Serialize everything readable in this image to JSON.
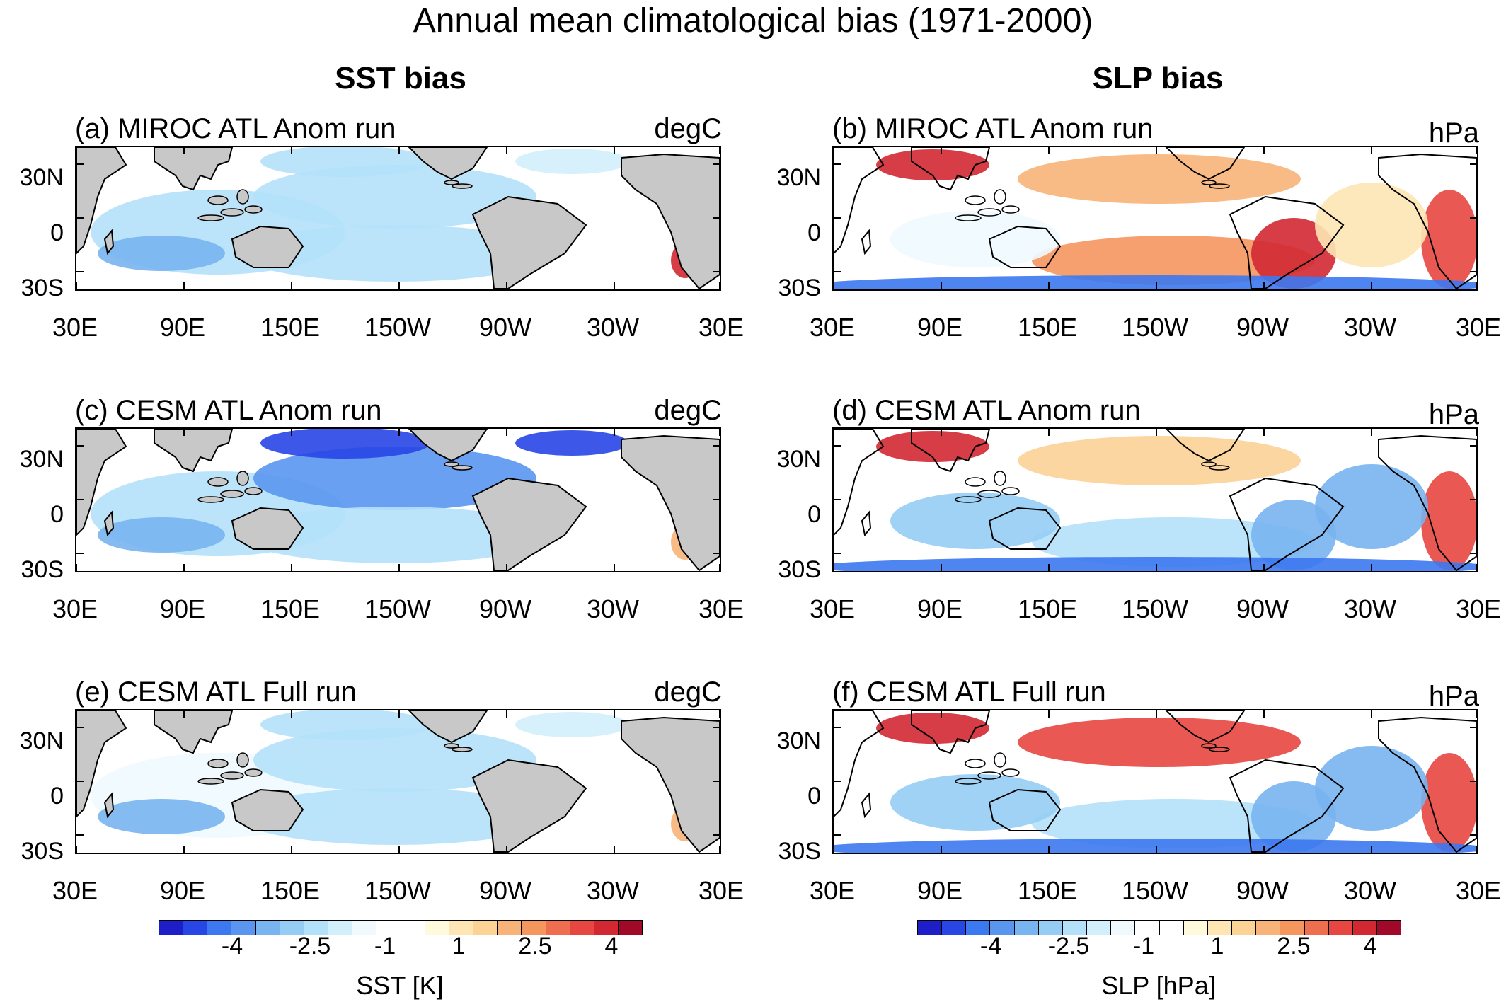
{
  "figure": {
    "title": "Annual mean climatological bias (1971-2000)",
    "column_titles": [
      "SST bias",
      "SLP bias"
    ]
  },
  "panels": [
    {
      "id": "a",
      "title": "(a) MIROC ATL Anom run",
      "unit": "degC",
      "field": "SST"
    },
    {
      "id": "b",
      "title": "(b) MIROC ATL Anom run",
      "unit": "hPa",
      "field": "SLP"
    },
    {
      "id": "c",
      "title": "(c) CESM ATL Anom run",
      "unit": "degC",
      "field": "SST"
    },
    {
      "id": "d",
      "title": "(d) CESM ATL Anom run",
      "unit": "hPa",
      "field": "SLP"
    },
    {
      "id": "e",
      "title": "(e) CESM ATL Full run",
      "unit": "degC",
      "field": "SST"
    },
    {
      "id": "f",
      "title": "(f) CESM ATL Full run",
      "unit": "hPa",
      "field": "SLP"
    }
  ],
  "axes": {
    "lat_ticks": [
      "30N",
      "0",
      "30S"
    ],
    "lon_ticks": [
      "30E",
      "90E",
      "150E",
      "150W",
      "90W",
      "30W",
      "30E"
    ]
  },
  "colorbar": {
    "ticks": [
      "-4",
      "-2.5",
      "-1",
      "1",
      "2.5",
      "4"
    ],
    "labels": [
      "SST [K]",
      "SLP [hPa]"
    ],
    "colors": [
      "#1e1ec8",
      "#2846e6",
      "#3c78f0",
      "#5a96f0",
      "#78b4f0",
      "#96cdf5",
      "#b4e1fa",
      "#d2f0fc",
      "#f0fafe",
      "#ffffff",
      "#ffffff",
      "#fffadc",
      "#fde6b4",
      "#fcd296",
      "#f8b478",
      "#f5965f",
      "#f06e50",
      "#e84641",
      "#d22832",
      "#a00a28"
    ]
  },
  "chart_data": [
    {
      "type": "heatmap",
      "panel": "a",
      "title": "(a) MIROC ATL Anom run",
      "unit": "degC",
      "xlabel": "",
      "ylabel": "",
      "x_ticks": [
        "30E",
        "90E",
        "150E",
        "150W",
        "90W",
        "30W",
        "30E"
      ],
      "y_ticks": [
        "30N",
        "0",
        "30S"
      ],
      "color_range": [
        -5,
        5
      ]
    },
    {
      "type": "heatmap",
      "panel": "b",
      "title": "(b) MIROC ATL Anom run",
      "unit": "hPa",
      "xlabel": "",
      "ylabel": "",
      "x_ticks": [
        "30E",
        "90E",
        "150E",
        "150W",
        "90W",
        "30W",
        "30E"
      ],
      "y_ticks": [
        "30N",
        "0",
        "30S"
      ],
      "color_range": [
        -5,
        5
      ]
    },
    {
      "type": "heatmap",
      "panel": "c",
      "title": "(c) CESM ATL Anom run",
      "unit": "degC",
      "xlabel": "",
      "ylabel": "",
      "x_ticks": [
        "30E",
        "90E",
        "150E",
        "150W",
        "90W",
        "30W",
        "30E"
      ],
      "y_ticks": [
        "30N",
        "0",
        "30S"
      ],
      "color_range": [
        -5,
        5
      ]
    },
    {
      "type": "heatmap",
      "panel": "d",
      "title": "(d) CESM ATL Anom run",
      "unit": "hPa",
      "xlabel": "",
      "ylabel": "",
      "x_ticks": [
        "30E",
        "90E",
        "150E",
        "150W",
        "90W",
        "30W",
        "30E"
      ],
      "y_ticks": [
        "30N",
        "0",
        "30S"
      ],
      "color_range": [
        -5,
        5
      ]
    },
    {
      "type": "heatmap",
      "panel": "e",
      "title": "(e) CESM ATL Full run",
      "unit": "degC",
      "xlabel": "",
      "ylabel": "",
      "x_ticks": [
        "30E",
        "90E",
        "150E",
        "150W",
        "90W",
        "30W",
        "30E"
      ],
      "y_ticks": [
        "30N",
        "0",
        "30S"
      ],
      "color_range": [
        -5,
        5
      ]
    },
    {
      "type": "heatmap",
      "panel": "f",
      "title": "(f) CESM ATL Full run",
      "unit": "hPa",
      "xlabel": "",
      "ylabel": "",
      "x_ticks": [
        "30E",
        "90E",
        "150E",
        "150W",
        "90W",
        "30W",
        "30E"
      ],
      "y_ticks": [
        "30N",
        "0",
        "30S"
      ],
      "color_range": [
        -5,
        5
      ]
    }
  ]
}
